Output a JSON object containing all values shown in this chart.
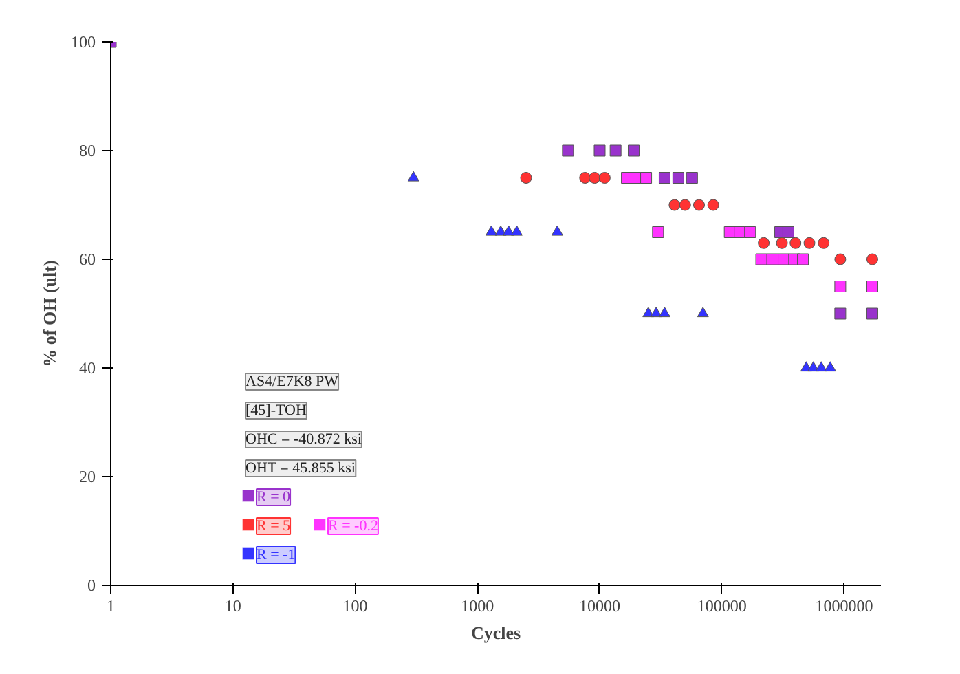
{
  "chart_data": {
    "type": "scatter",
    "xlabel": "Cycles",
    "ylabel": "% of OH (ult)",
    "log": "x",
    "grid": false,
    "xlim": [
      1,
      2000000
    ],
    "xticks": [
      1,
      10,
      100,
      1000,
      10000,
      100000,
      1000000
    ],
    "ylim": [
      0,
      100
    ],
    "yticks": [
      0,
      20,
      40,
      60,
      80,
      100
    ],
    "annotations": [
      "AS4/E7K8 PW",
      "[45]-TOH",
      "OHC = -40.872 ksi",
      "OHT = 45.855 ksi"
    ],
    "legend": "bottom left",
    "series": [
      {
        "name": "R = 0",
        "color": "#9933cc",
        "marker": "square",
        "x": [
          1,
          5500,
          10000,
          13500,
          19000,
          34000,
          44000,
          57000,
          300000,
          350000,
          930000,
          1700000
        ],
        "values": [
          100,
          80,
          80,
          80,
          80,
          75,
          75,
          75,
          65,
          65,
          50,
          50
        ]
      },
      {
        "name": "R = 5",
        "color": "#ff3333",
        "marker": "circle",
        "x": [
          2500,
          7600,
          9100,
          11000,
          41000,
          50000,
          65000,
          85000,
          220000,
          310000,
          400000,
          520000,
          680000,
          930000,
          1700000
        ],
        "values": [
          75,
          75,
          75,
          75,
          70,
          70,
          70,
          70,
          63,
          63,
          63,
          63,
          63,
          60,
          60
        ]
      },
      {
        "name": "R = -0.2",
        "color": "#ff33ff",
        "marker": "square",
        "x": [
          16700,
          20000,
          24000,
          30000,
          116000,
          140000,
          170000,
          210000,
          260000,
          320000,
          390000,
          460000,
          930000,
          1700000
        ],
        "values": [
          75,
          75,
          75,
          65,
          65,
          65,
          65,
          60,
          60,
          60,
          60,
          60,
          55,
          55
        ]
      },
      {
        "name": "R = -1",
        "color": "#3333ff",
        "marker": "triangle",
        "x": [
          300,
          1300,
          1550,
          1800,
          2100,
          4500,
          25000,
          29000,
          34000,
          70000,
          490000,
          560000,
          650000,
          770000
        ],
        "values": [
          75,
          65,
          65,
          65,
          65,
          65,
          50,
          50,
          50,
          50,
          40,
          40,
          40,
          40
        ]
      }
    ]
  }
}
